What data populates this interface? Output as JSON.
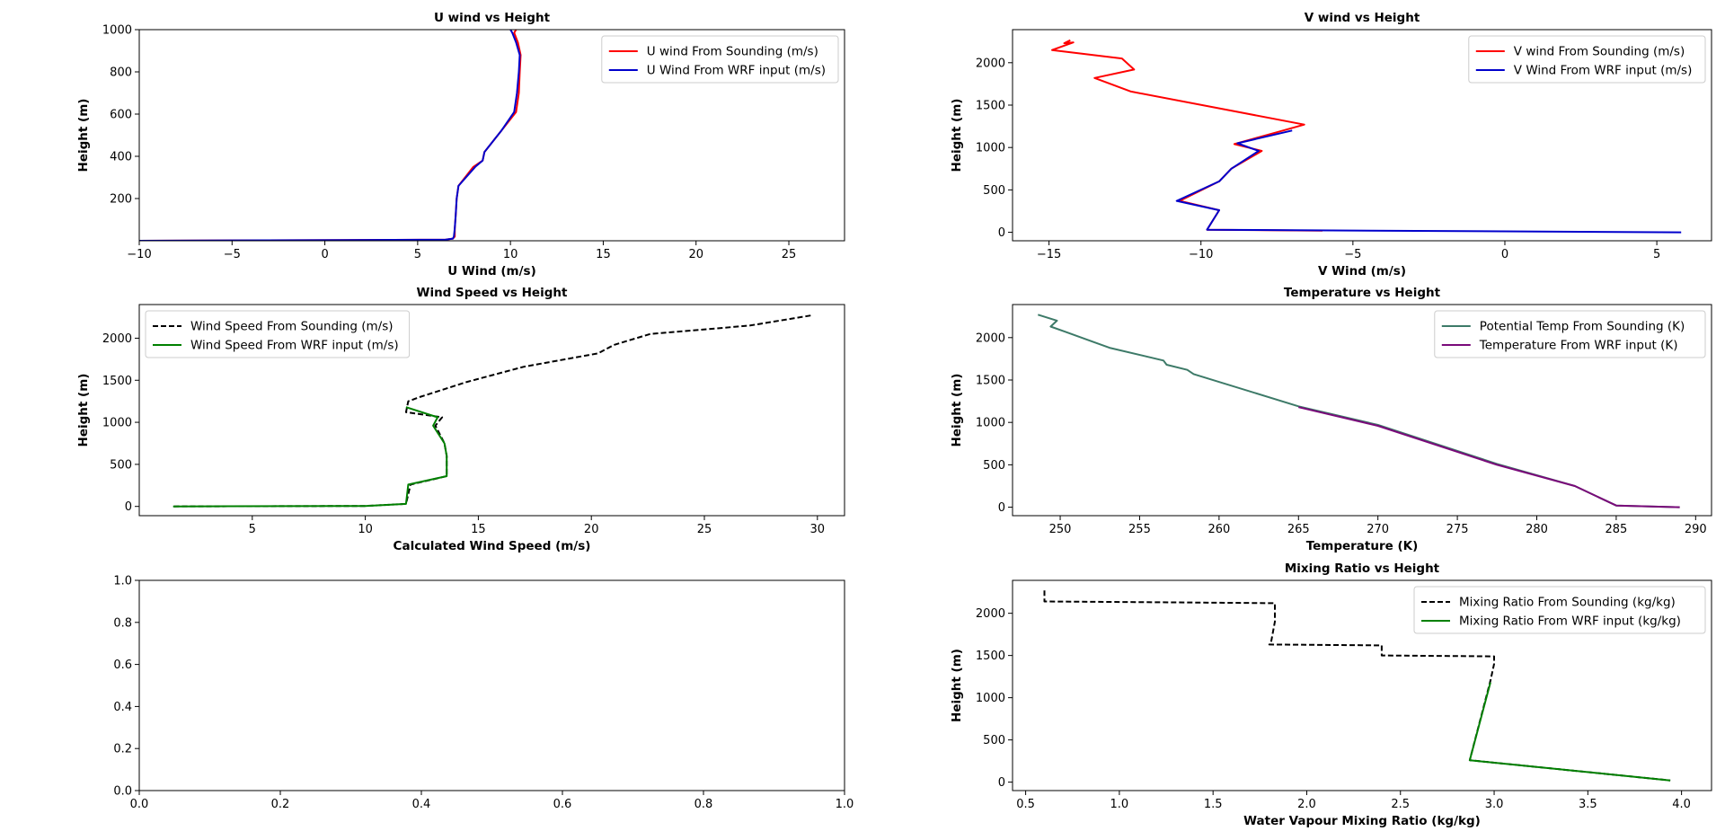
{
  "chart_data": [
    {
      "type": "line",
      "title": "U wind vs Height",
      "xlabel": "U Wind (m/s)",
      "ylabel": "Height (m)",
      "xlim": [
        -10,
        28
      ],
      "ylim": [
        0,
        1000
      ],
      "xticks": [
        -10,
        -5,
        0,
        5,
        10,
        15,
        20,
        25
      ],
      "xtick_labels": [
        "−10",
        "−5",
        "0",
        "5",
        "10",
        "15",
        "20",
        "25"
      ],
      "yticks": [
        200,
        400,
        600,
        800,
        1000
      ],
      "ytick_labels": [
        "200",
        "400",
        "600",
        "800",
        "1000"
      ],
      "legend": "top-right",
      "series": [
        {
          "name": "U wind From Sounding (m/s)",
          "color": "#ff0000",
          "dash": "solid",
          "x": [
            -10,
            6.5,
            6.9,
            7.0,
            7.0,
            7.05,
            7.1,
            7.2,
            8.0,
            8.5,
            8.6,
            9.5,
            10.3,
            10.45,
            10.5,
            10.55,
            10.4,
            10.2,
            10.3
          ],
          "y": [
            0,
            5,
            10,
            20,
            60,
            120,
            200,
            260,
            350,
            380,
            420,
            520,
            610,
            700,
            800,
            880,
            940,
            985,
            1000
          ]
        },
        {
          "name": "U Wind From WRF input (m/s)",
          "color": "#0000cc",
          "dash": "solid",
          "x": [
            -10,
            6.5,
            6.9,
            6.95,
            7.0,
            7.05,
            7.1,
            7.2,
            8.1,
            8.5,
            8.6,
            9.5,
            10.2,
            10.35,
            10.45,
            10.5,
            10.3,
            10.1,
            10.0
          ],
          "y": [
            0,
            5,
            10,
            20,
            60,
            120,
            200,
            260,
            350,
            380,
            420,
            520,
            610,
            700,
            800,
            880,
            940,
            985,
            1000
          ]
        }
      ]
    },
    {
      "type": "line",
      "title": "V wind vs Height",
      "xlabel": "V Wind (m/s)",
      "ylabel": "Height (m)",
      "xlim": [
        -16.2,
        6.8
      ],
      "ylim": [
        -100,
        2390
      ],
      "xticks": [
        -15,
        -10,
        -5,
        0,
        5
      ],
      "xtick_labels": [
        "−15",
        "−10",
        "−5",
        "0",
        "5"
      ],
      "yticks": [
        0,
        500,
        1000,
        1500,
        2000
      ],
      "ytick_labels": [
        "0",
        "500",
        "1000",
        "1500",
        "2000"
      ],
      "legend": "top-right",
      "series": [
        {
          "name": "V wind From Sounding (m/s)",
          "color": "#ff0000",
          "dash": "solid",
          "x": [
            -14.3,
            -14.5,
            -14.2,
            -14.9,
            -12.6,
            -12.2,
            -13.5,
            -12.3,
            -6.6,
            -7.5,
            -8.9,
            -8.0,
            -9.0,
            -9.4,
            -10.7,
            -9.4,
            -9.8,
            -6.0
          ],
          "y": [
            2265,
            2230,
            2240,
            2150,
            2050,
            1920,
            1820,
            1660,
            1270,
            1180,
            1040,
            960,
            750,
            600,
            370,
            260,
            30,
            20
          ]
        },
        {
          "name": "V Wind From WRF input (m/s)",
          "color": "#0000cc",
          "dash": "solid",
          "x": [
            -7.0,
            -8.8,
            -8.1,
            -9.0,
            -9.4,
            -10.8,
            -9.4,
            -9.8,
            5.8
          ],
          "y": [
            1200,
            1050,
            960,
            750,
            600,
            370,
            260,
            30,
            0
          ]
        }
      ]
    },
    {
      "type": "line",
      "title": "Wind Speed vs Height",
      "xlabel": "Calculated Wind Speed (m/s)",
      "ylabel": "Height (m)",
      "xlim": [
        0,
        31.2
      ],
      "ylim": [
        -110,
        2400
      ],
      "xticks": [
        5,
        10,
        15,
        20,
        25,
        30
      ],
      "xtick_labels": [
        "5",
        "10",
        "15",
        "20",
        "25",
        "30"
      ],
      "yticks": [
        0,
        500,
        1000,
        1500,
        2000
      ],
      "ytick_labels": [
        "0",
        "500",
        "1000",
        "1500",
        "2000"
      ],
      "legend": "top-left",
      "series": [
        {
          "name": "Wind Speed From Sounding (m/s)",
          "color": "#000000",
          "dash": "dashed",
          "x": [
            29.7,
            27.0,
            22.6,
            21.0,
            20.3,
            17.0,
            14.5,
            12.4,
            11.9,
            11.8,
            13.4,
            13.1,
            13.5,
            13.6,
            13.6,
            12.0,
            11.8,
            10.0,
            1.5
          ],
          "y": [
            2270,
            2150,
            2050,
            1920,
            1820,
            1660,
            1480,
            1300,
            1250,
            1120,
            1060,
            960,
            750,
            600,
            360,
            260,
            30,
            5,
            0
          ]
        },
        {
          "name": "Wind Speed From WRF input (m/s)",
          "color": "#008000",
          "dash": "solid",
          "x": [
            11.8,
            13.2,
            13.0,
            13.5,
            13.6,
            13.6,
            11.9,
            11.8,
            10.0,
            1.5
          ],
          "y": [
            1180,
            1060,
            960,
            750,
            600,
            360,
            260,
            30,
            5,
            0
          ]
        }
      ]
    },
    {
      "type": "line",
      "title": "Temperature vs Height",
      "xlabel": "Temperature (K)",
      "ylabel": "Height (m)",
      "xlim": [
        247,
        291
      ],
      "ylim": [
        -100,
        2390
      ],
      "xticks": [
        250,
        255,
        260,
        265,
        270,
        275,
        280,
        285,
        290
      ],
      "xtick_labels": [
        "250",
        "255",
        "260",
        "265",
        "270",
        "275",
        "280",
        "285",
        "290"
      ],
      "yticks": [
        0,
        500,
        1000,
        1500,
        2000
      ],
      "ytick_labels": [
        "0",
        "500",
        "1000",
        "1500",
        "2000"
      ],
      "legend": "top-right",
      "series": [
        {
          "name": "Potential Temp From Sounding (K)",
          "color": "#3d7a68",
          "dash": "solid",
          "x": [
            248.6,
            249.8,
            249.4,
            250.3,
            253.1,
            256.5,
            256.7,
            258.0,
            258.4,
            265.0,
            270.0,
            277.5,
            282.4,
            285.0,
            289.0
          ],
          "y": [
            2270,
            2200,
            2130,
            2070,
            1880,
            1730,
            1680,
            1620,
            1570,
            1190,
            970,
            510,
            250,
            20,
            0
          ]
        },
        {
          "name": "Temperature From WRF input (K)",
          "color": "#7a0a7a",
          "dash": "solid",
          "x": [
            265.0,
            270.0,
            277.5,
            282.4,
            285.0,
            289.0
          ],
          "y": [
            1180,
            960,
            500,
            250,
            20,
            0
          ]
        }
      ]
    },
    {
      "type": "line",
      "title": "",
      "xlabel": "",
      "ylabel": "",
      "xlim": [
        0,
        1
      ],
      "ylim": [
        0,
        1
      ],
      "xticks": [
        0,
        0.2,
        0.4,
        0.6,
        0.8,
        1.0
      ],
      "xtick_labels": [
        "0.0",
        "0.2",
        "0.4",
        "0.6",
        "0.8",
        "1.0"
      ],
      "yticks": [
        0,
        0.2,
        0.4,
        0.6,
        0.8,
        1.0
      ],
      "ytick_labels": [
        "0.0",
        "0.2",
        "0.4",
        "0.6",
        "0.8",
        "1.0"
      ],
      "legend": "",
      "series": []
    },
    {
      "type": "line",
      "title": "Mixing Ratio vs Height",
      "xlabel": "Water Vapour Mixing Ratio (kg/kg)",
      "ylabel": "Height (m)",
      "xlim": [
        0.43,
        4.16
      ],
      "ylim": [
        -100,
        2390
      ],
      "xticks": [
        0.5,
        1.0,
        1.5,
        2.0,
        2.5,
        3.0,
        3.5,
        4.0
      ],
      "xtick_labels": [
        "0.5",
        "1.0",
        "1.5",
        "2.0",
        "2.5",
        "3.0",
        "3.5",
        "4.0"
      ],
      "yticks": [
        0,
        500,
        1000,
        1500,
        2000
      ],
      "ytick_labels": [
        "0",
        "500",
        "1000",
        "1500",
        "2000"
      ],
      "legend": "top-right",
      "series": [
        {
          "name": "Mixing Ratio From Sounding (kg/kg)",
          "color": "#000000",
          "dash": "dashed",
          "x": [
            0.6,
            0.6,
            0.6,
            1.22,
            1.83,
            1.83,
            1.81,
            1.8,
            2.4,
            2.4,
            3.0,
            3.0,
            2.98,
            2.87,
            3.94
          ],
          "y": [
            2270,
            2190,
            2140,
            2130,
            2120,
            1900,
            1660,
            1630,
            1620,
            1500,
            1490,
            1400,
            1200,
            260,
            20
          ]
        },
        {
          "name": "Mixing Ratio From WRF input (kg/kg)",
          "color": "#008000",
          "dash": "solid",
          "x": [
            2.98,
            2.87,
            3.94
          ],
          "y": [
            1180,
            260,
            20
          ]
        }
      ]
    }
  ]
}
